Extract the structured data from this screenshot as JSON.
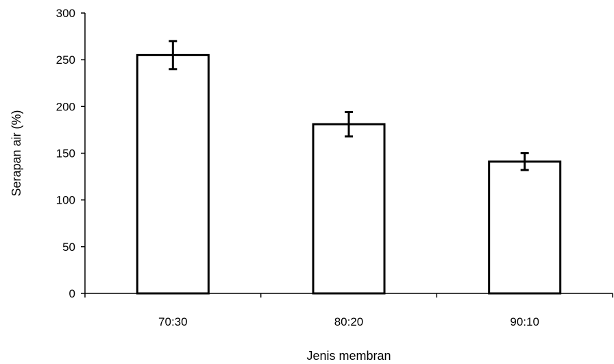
{
  "chart_data": {
    "type": "bar",
    "categories": [
      "70:30",
      "80:20",
      "90:10"
    ],
    "values": [
      255,
      181,
      141
    ],
    "error": [
      15,
      13,
      9
    ],
    "title": "",
    "xlabel": "Jenis membran",
    "ylabel": "Serapan air (%)",
    "ylim": [
      0,
      300
    ],
    "yticks": [
      0,
      50,
      100,
      150,
      200,
      250,
      300
    ],
    "grid": false,
    "legend": false,
    "colors": {
      "bar_fill": "#ffffff",
      "bar_stroke": "#000000",
      "axis": "#000000"
    }
  }
}
